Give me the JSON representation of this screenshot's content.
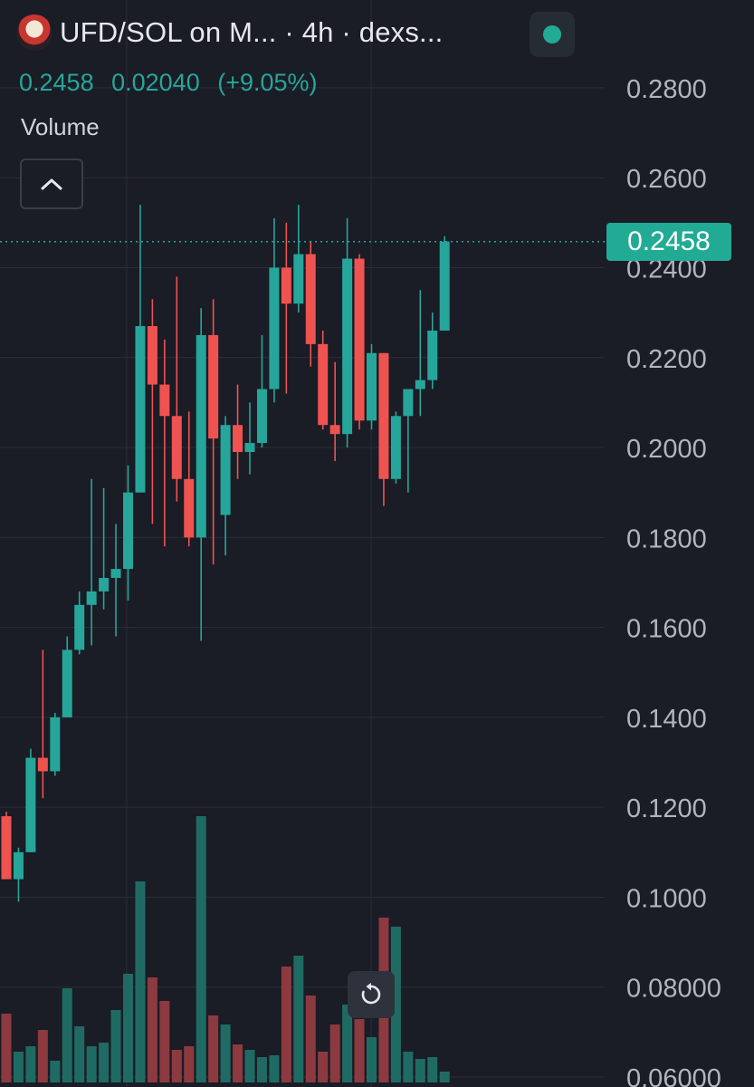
{
  "header": {
    "title": "UFD/SOL on M... · 4h · dexs...",
    "last": "0.2458",
    "change": "0.02040",
    "change_pct": "(+9.05%)",
    "volume_label": "Volume"
  },
  "colors": {
    "background": "#1a1c26",
    "up": "#26a69a",
    "down": "#ef5350",
    "volume_up": "#1f6b63",
    "volume_down": "#8c3a3f",
    "grid": "#2a2e39",
    "axis_text": "#b2b5be",
    "price_tag": "#22ab94"
  },
  "icons": {
    "avatar": "token-avatar",
    "status": "live-status-dot",
    "collapse": "chevron-up-icon",
    "reset": "reset-rotate-icon"
  },
  "chart_data": {
    "type": "candlestick",
    "timeframe": "4h",
    "y_ticks": [
      "0.2800",
      "0.2600",
      "0.2400",
      "0.2200",
      "0.2000",
      "0.1800",
      "0.1600",
      "0.1400",
      "0.1200",
      "0.1000",
      "0.08000",
      "0.06000"
    ],
    "last_price_label": "0.2458",
    "last_price": 0.2458,
    "candles": [
      {
        "o": 0.118,
        "h": 0.119,
        "l": 0.104,
        "c": 0.104
      },
      {
        "o": 0.104,
        "h": 0.111,
        "l": 0.099,
        "c": 0.11
      },
      {
        "o": 0.11,
        "h": 0.133,
        "l": 0.11,
        "c": 0.131
      },
      {
        "o": 0.131,
        "h": 0.155,
        "l": 0.122,
        "c": 0.128
      },
      {
        "o": 0.128,
        "h": 0.141,
        "l": 0.127,
        "c": 0.14
      },
      {
        "o": 0.14,
        "h": 0.158,
        "l": 0.14,
        "c": 0.155
      },
      {
        "o": 0.155,
        "h": 0.168,
        "l": 0.154,
        "c": 0.165
      },
      {
        "o": 0.165,
        "h": 0.193,
        "l": 0.156,
        "c": 0.168
      },
      {
        "o": 0.168,
        "h": 0.191,
        "l": 0.164,
        "c": 0.171
      },
      {
        "o": 0.171,
        "h": 0.183,
        "l": 0.158,
        "c": 0.173
      },
      {
        "o": 0.173,
        "h": 0.196,
        "l": 0.166,
        "c": 0.19
      },
      {
        "o": 0.19,
        "h": 0.254,
        "l": 0.19,
        "c": 0.227
      },
      {
        "o": 0.227,
        "h": 0.233,
        "l": 0.183,
        "c": 0.214
      },
      {
        "o": 0.214,
        "h": 0.224,
        "l": 0.178,
        "c": 0.207
      },
      {
        "o": 0.207,
        "h": 0.238,
        "l": 0.188,
        "c": 0.193
      },
      {
        "o": 0.193,
        "h": 0.208,
        "l": 0.178,
        "c": 0.18
      },
      {
        "o": 0.18,
        "h": 0.231,
        "l": 0.157,
        "c": 0.225
      },
      {
        "o": 0.225,
        "h": 0.233,
        "l": 0.174,
        "c": 0.202
      },
      {
        "o": 0.185,
        "h": 0.207,
        "l": 0.176,
        "c": 0.205
      },
      {
        "o": 0.205,
        "h": 0.214,
        "l": 0.193,
        "c": 0.199
      },
      {
        "o": 0.199,
        "h": 0.21,
        "l": 0.194,
        "c": 0.201
      },
      {
        "o": 0.201,
        "h": 0.225,
        "l": 0.2,
        "c": 0.213
      },
      {
        "o": 0.213,
        "h": 0.251,
        "l": 0.21,
        "c": 0.24
      },
      {
        "o": 0.24,
        "h": 0.25,
        "l": 0.212,
        "c": 0.232
      },
      {
        "o": 0.232,
        "h": 0.254,
        "l": 0.23,
        "c": 0.243
      },
      {
        "o": 0.243,
        "h": 0.246,
        "l": 0.218,
        "c": 0.223
      },
      {
        "o": 0.223,
        "h": 0.226,
        "l": 0.204,
        "c": 0.205
      },
      {
        "o": 0.205,
        "h": 0.219,
        "l": 0.197,
        "c": 0.203
      },
      {
        "o": 0.203,
        "h": 0.251,
        "l": 0.2,
        "c": 0.242
      },
      {
        "o": 0.242,
        "h": 0.243,
        "l": 0.204,
        "c": 0.206
      },
      {
        "o": 0.206,
        "h": 0.223,
        "l": 0.204,
        "c": 0.221
      },
      {
        "o": 0.221,
        "h": 0.221,
        "l": 0.187,
        "c": 0.193
      },
      {
        "o": 0.193,
        "h": 0.208,
        "l": 0.192,
        "c": 0.207
      },
      {
        "o": 0.207,
        "h": 0.213,
        "l": 0.19,
        "c": 0.213
      },
      {
        "o": 0.213,
        "h": 0.235,
        "l": 0.207,
        "c": 0.215
      },
      {
        "o": 0.215,
        "h": 0.23,
        "l": 0.213,
        "c": 0.226
      },
      {
        "o": 0.226,
        "h": 0.247,
        "l": 0.226,
        "c": 0.2458
      }
    ],
    "volume": [
      38,
      17,
      20,
      29,
      12,
      52,
      31,
      20,
      22,
      40,
      60,
      111,
      58,
      45,
      18,
      20,
      147,
      37,
      32,
      21,
      18,
      14,
      15,
      64,
      70,
      48,
      17,
      32,
      43,
      35,
      25,
      91,
      86,
      17,
      13,
      14,
      6
    ],
    "volume_max": 150
  }
}
